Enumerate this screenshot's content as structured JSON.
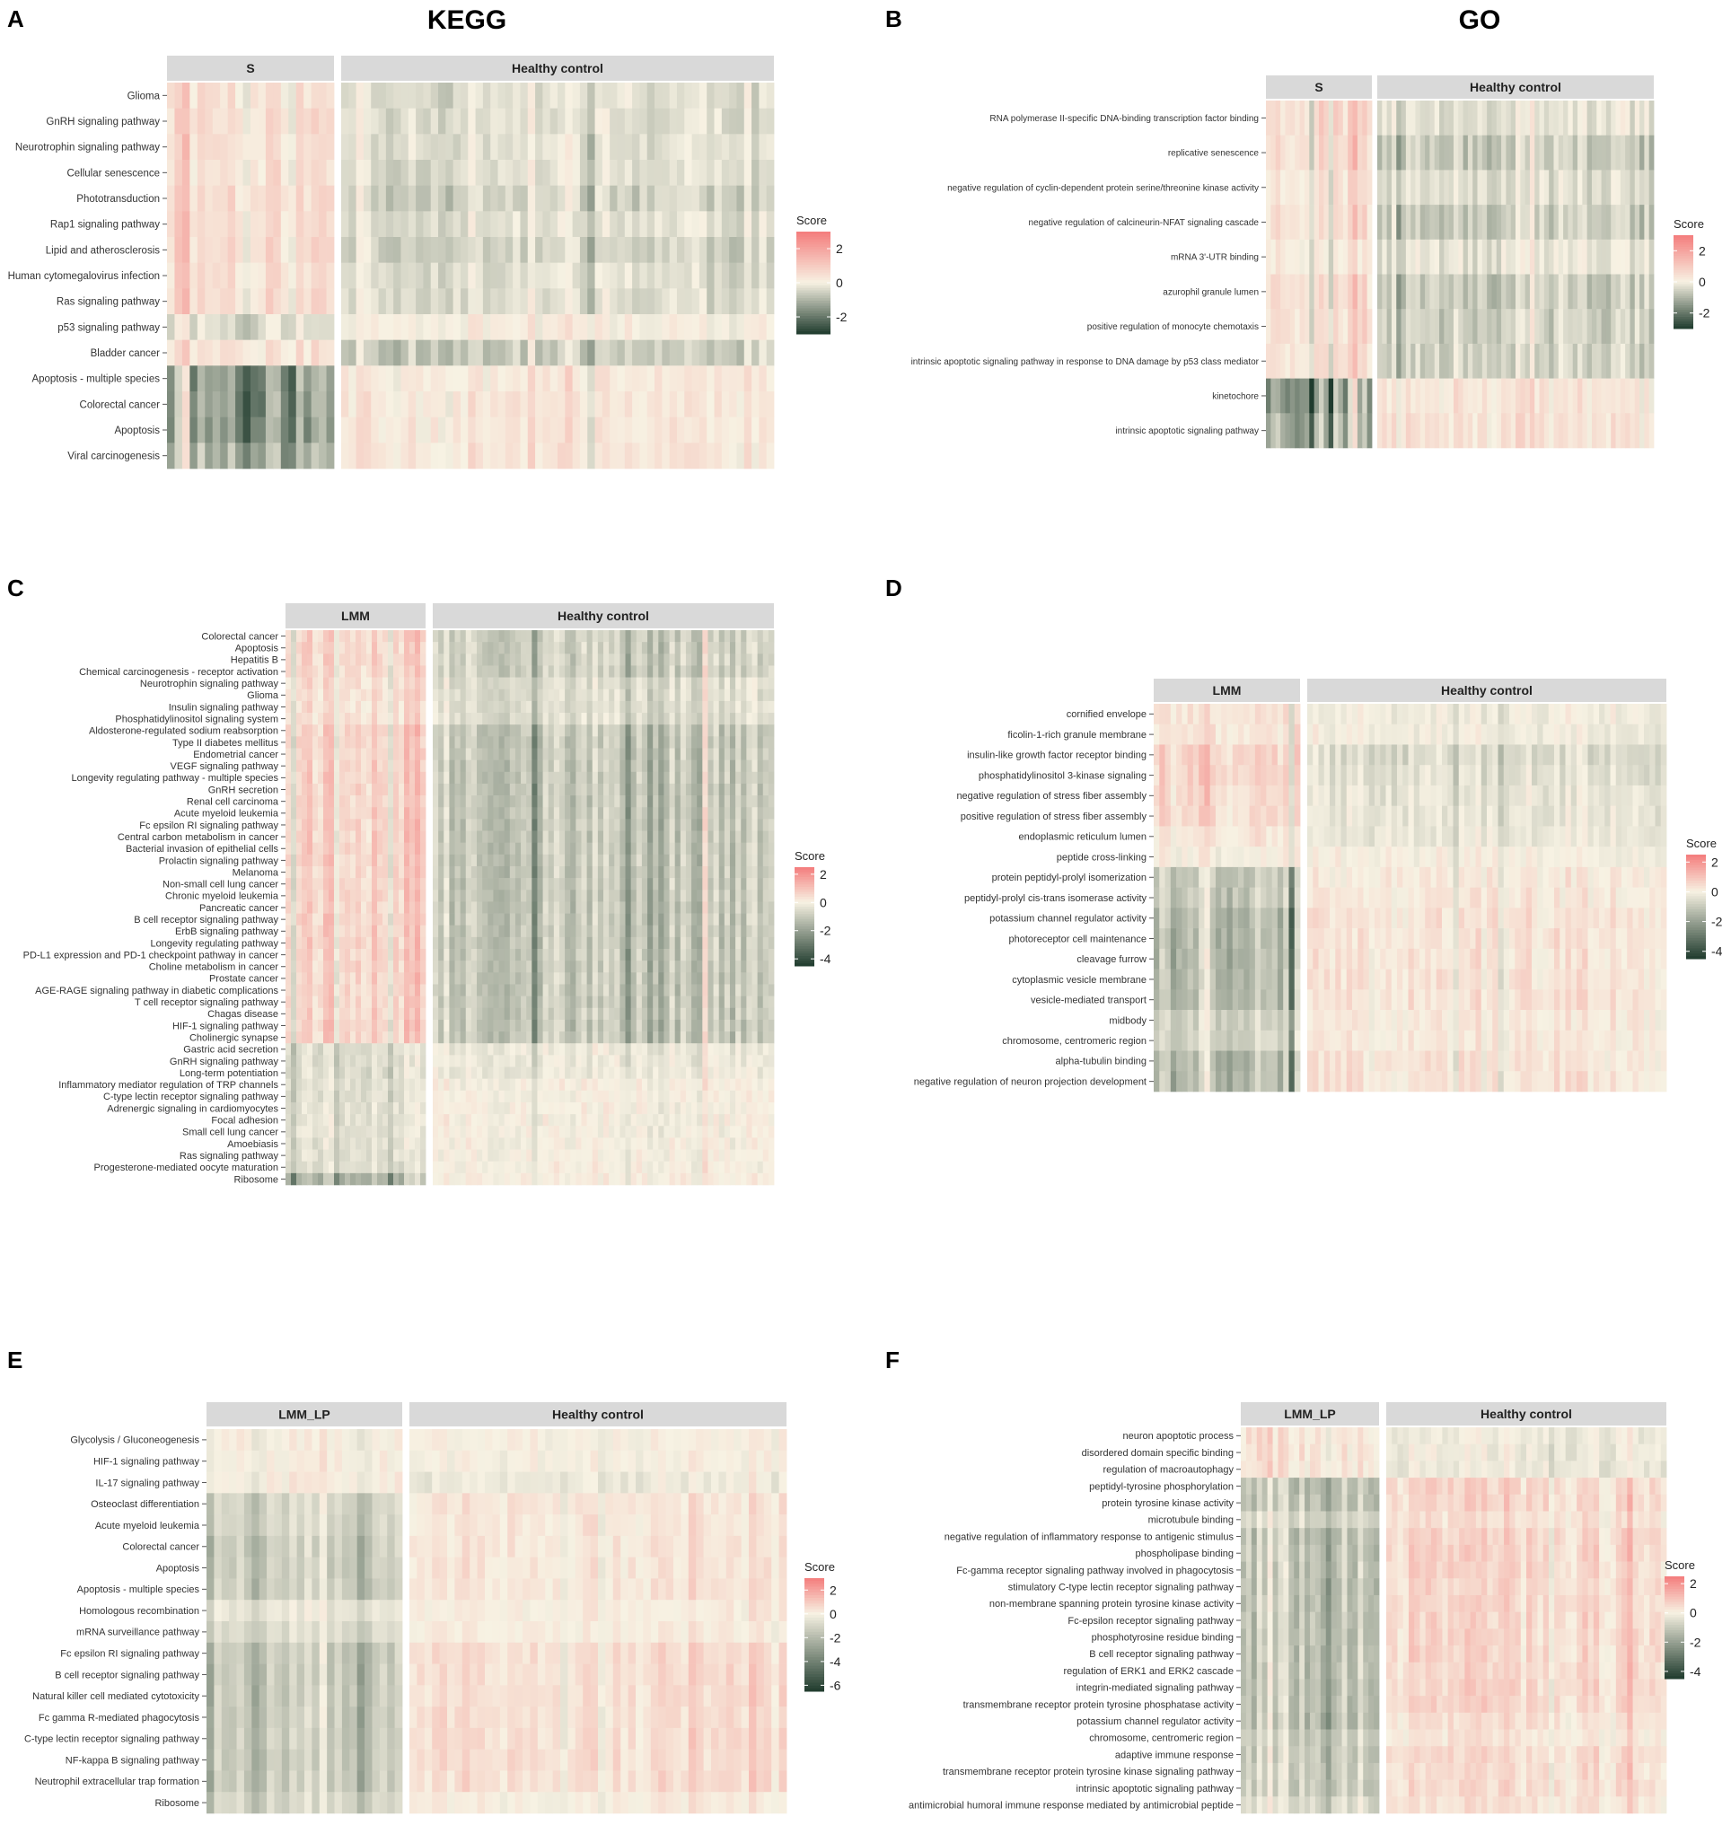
{
  "figure": {
    "col_titles": [
      "KEGG",
      "GO"
    ]
  },
  "colors": {
    "low": "#1f3b2d",
    "mid": "#f7f2e3",
    "high": "#f47c7c",
    "strip_bg": "#d9d9d9"
  },
  "chart_data": [
    {
      "type": "heatmap",
      "panel_label": "A",
      "legend_title": "Score",
      "legend_ticks": [
        2,
        0,
        -2
      ],
      "scale": [
        -3,
        3
      ],
      "groups": [
        {
          "name": "S",
          "n_cols": 22
        },
        {
          "name": "Healthy control",
          "n_cols": 58
        }
      ],
      "rows": [
        "Glioma",
        "GnRH signaling pathway",
        "Neurotrophin signaling pathway",
        "Cellular senescence",
        "Phototransduction",
        "Rap1 signaling pathway",
        "Lipid and atherosclerosis",
        "Human cytomegalovirus infection",
        "Ras signaling pathway",
        "p53 signaling pathway",
        "Bladder cancer",
        "Apoptosis - multiple species",
        "Colorectal cancer",
        "Apoptosis",
        "Viral carcinogenesis"
      ],
      "row_trend": [
        [
          0.5,
          -0.3
        ],
        [
          0.5,
          -0.3
        ],
        [
          0.5,
          -0.3
        ],
        [
          0.5,
          -0.3
        ],
        [
          0.6,
          -0.5
        ],
        [
          0.5,
          -0.3
        ],
        [
          0.6,
          -0.5
        ],
        [
          0.5,
          -0.3
        ],
        [
          0.5,
          -0.3
        ],
        [
          -0.3,
          0.1
        ],
        [
          0.4,
          -0.6
        ],
        [
          -1.3,
          0.3
        ],
        [
          -1.3,
          0.3
        ],
        [
          -1.3,
          0.3
        ],
        [
          -1.0,
          0.3
        ]
      ],
      "seed": 11
    },
    {
      "type": "heatmap",
      "panel_label": "B",
      "legend_title": "Score",
      "legend_ticks": [
        2,
        0,
        -2
      ],
      "scale": [
        -3,
        3
      ],
      "groups": [
        {
          "name": "S",
          "n_cols": 22
        },
        {
          "name": "Healthy control",
          "n_cols": 58
        }
      ],
      "rows": [
        "RNA polymerase II-specific DNA-binding transcription factor binding",
        "replicative senescence",
        "negative regulation of cyclin-dependent protein serine/threonine kinase activity",
        "negative regulation of calcineurin-NFAT signaling cascade",
        "mRNA 3'-UTR binding",
        "azurophil granule lumen",
        "positive regulation of monocyte chemotaxis",
        "intrinsic apoptotic signaling pathway in response to DNA damage by p53 class mediator",
        "kinetochore",
        "intrinsic apoptotic signaling pathway"
      ],
      "row_trend": [
        [
          0.6,
          -0.2
        ],
        [
          0.6,
          -0.6
        ],
        [
          0.4,
          -0.3
        ],
        [
          0.5,
          -0.6
        ],
        [
          0.2,
          -0.2
        ],
        [
          0.5,
          -0.6
        ],
        [
          0.5,
          -0.5
        ],
        [
          0.5,
          -0.5
        ],
        [
          -1.3,
          0.3
        ],
        [
          -1.0,
          0.4
        ]
      ],
      "seed": 23
    },
    {
      "type": "heatmap",
      "panel_label": "C",
      "legend_title": "Score",
      "legend_ticks": [
        2,
        0,
        -2,
        -4
      ],
      "scale": [
        -4.5,
        2.5
      ],
      "groups": [
        {
          "name": "LMM",
          "n_cols": 26
        },
        {
          "name": "Healthy control",
          "n_cols": 62
        }
      ],
      "rows": [
        "Colorectal cancer",
        "Apoptosis",
        "Hepatitis B",
        "Chemical carcinogenesis - receptor activation",
        "Neurotrophin signaling pathway",
        "Glioma",
        "Insulin signaling pathway",
        "Phosphatidylinositol signaling system",
        "Aldosterone-regulated sodium reabsorption",
        "Type II diabetes mellitus",
        "Endometrial cancer",
        "VEGF signaling pathway",
        "Longevity regulating pathway - multiple species",
        "GnRH secretion",
        "Renal cell carcinoma",
        "Acute myeloid leukemia",
        "Fc epsilon RI signaling pathway",
        "Central carbon metabolism in cancer",
        "Bacterial invasion of epithelial cells",
        "Prolactin signaling pathway",
        "Melanoma",
        "Non-small cell lung cancer",
        "Chronic myeloid leukemia",
        "Pancreatic cancer",
        "B cell receptor signaling pathway",
        "ErbB signaling pathway",
        "Longevity regulating pathway",
        "PD-L1 expression and PD-1 checkpoint pathway in cancer",
        "Choline metabolism in cancer",
        "Prostate cancer",
        "AGE-RAGE signaling pathway in diabetic complications",
        "T cell receptor signaling pathway",
        "Chagas disease",
        "HIF-1 signaling pathway",
        "Cholinergic synapse",
        "Gastric acid secretion",
        "GnRH signaling pathway",
        "Long-term potentiation",
        "Inflammatory mediator regulation of TRP channels",
        "C-type lectin receptor signaling pathway",
        "Adrenergic signaling in cardiomyocytes",
        "Focal adhesion",
        "Small cell lung cancer",
        "Amoebiasis",
        "Ras signaling pathway",
        "Progesterone-mediated oocyte maturation",
        "Ribosome"
      ],
      "row_trend": [
        [
          0.7,
          -0.8
        ],
        [
          0.7,
          -0.8
        ],
        [
          0.7,
          -0.8
        ],
        [
          0.7,
          -0.8
        ],
        [
          0.5,
          -0.5
        ],
        [
          0.5,
          -0.5
        ],
        [
          0.5,
          -0.5
        ],
        [
          0.5,
          -0.5
        ],
        [
          0.8,
          -1.0
        ],
        [
          0.8,
          -1.0
        ],
        [
          0.8,
          -1.0
        ],
        [
          0.8,
          -1.0
        ],
        [
          0.8,
          -1.0
        ],
        [
          0.8,
          -1.0
        ],
        [
          0.8,
          -1.0
        ],
        [
          0.8,
          -1.0
        ],
        [
          0.8,
          -1.0
        ],
        [
          0.8,
          -1.0
        ],
        [
          0.8,
          -1.0
        ],
        [
          0.8,
          -1.0
        ],
        [
          0.8,
          -1.0
        ],
        [
          0.8,
          -1.0
        ],
        [
          0.8,
          -1.0
        ],
        [
          0.8,
          -1.0
        ],
        [
          0.8,
          -1.0
        ],
        [
          0.8,
          -1.0
        ],
        [
          0.8,
          -1.0
        ],
        [
          0.8,
          -1.0
        ],
        [
          0.8,
          -1.0
        ],
        [
          0.8,
          -1.0
        ],
        [
          0.8,
          -1.0
        ],
        [
          0.8,
          -1.0
        ],
        [
          0.8,
          -1.0
        ],
        [
          0.8,
          -1.0
        ],
        [
          0.8,
          -1.0
        ],
        [
          -0.4,
          -0.2
        ],
        [
          -0.4,
          -0.2
        ],
        [
          -0.4,
          -0.2
        ],
        [
          -0.3,
          0.0
        ],
        [
          -0.3,
          0.0
        ],
        [
          -0.3,
          0.0
        ],
        [
          -0.3,
          0.0
        ],
        [
          -0.3,
          0.0
        ],
        [
          -0.3,
          0.0
        ],
        [
          -0.3,
          0.0
        ],
        [
          -0.4,
          0.0
        ],
        [
          -1.2,
          0.1
        ]
      ],
      "seed": 37
    },
    {
      "type": "heatmap",
      "panel_label": "D",
      "legend_title": "Score",
      "legend_ticks": [
        2,
        0,
        -2,
        -4
      ],
      "scale": [
        -4.5,
        2.5
      ],
      "groups": [
        {
          "name": "LMM",
          "n_cols": 26
        },
        {
          "name": "Healthy control",
          "n_cols": 64
        }
      ],
      "rows": [
        "cornified envelope",
        "ficolin-1-rich granule membrane",
        "insulin-like growth factor receptor binding",
        "phosphatidylinositol 3-kinase signaling",
        "negative regulation of stress fiber assembly",
        "positive regulation of stress fiber assembly",
        "endoplasmic reticulum lumen",
        "peptide cross-linking",
        "protein peptidyl-prolyl isomerization",
        "peptidyl-prolyl cis-trans isomerase activity",
        "potassium channel regulator activity",
        "photoreceptor cell maintenance",
        "cleavage furrow",
        "cytoplasmic vesicle membrane",
        "vesicle-mediated transport",
        "midbody",
        "chromosome, centromeric region",
        "alpha-tubulin binding",
        "negative regulation of neuron projection development"
      ],
      "row_trend": [
        [
          0.3,
          -0.1
        ],
        [
          0.3,
          -0.1
        ],
        [
          0.6,
          -0.5
        ],
        [
          0.6,
          -0.4
        ],
        [
          0.5,
          -0.3
        ],
        [
          0.5,
          -0.3
        ],
        [
          0.2,
          -0.2
        ],
        [
          0.0,
          0.0
        ],
        [
          -1.0,
          0.2
        ],
        [
          -1.0,
          0.2
        ],
        [
          -1.3,
          0.3
        ],
        [
          -1.3,
          0.3
        ],
        [
          -1.3,
          0.3
        ],
        [
          -1.3,
          0.3
        ],
        [
          -1.3,
          0.3
        ],
        [
          -0.8,
          0.2
        ],
        [
          -0.8,
          0.2
        ],
        [
          -1.3,
          0.3
        ],
        [
          -1.3,
          0.3
        ]
      ],
      "seed": 41
    },
    {
      "type": "heatmap",
      "panel_label": "E",
      "legend_title": "Score",
      "legend_ticks": [
        2,
        0,
        -2,
        -4,
        -6
      ],
      "scale": [
        -6.5,
        3
      ],
      "groups": [
        {
          "name": "LMM_LP",
          "n_cols": 26
        },
        {
          "name": "Healthy control",
          "n_cols": 50
        }
      ],
      "rows": [
        "Glycolysis / Gluconeogenesis",
        "HIF-1 signaling pathway",
        "IL-17 signaling pathway",
        "Osteoclast differentiation",
        "Acute myeloid leukemia",
        "Colorectal cancer",
        "Apoptosis",
        "Apoptosis - multiple species",
        "Homologous recombination",
        "mRNA surveillance pathway",
        "Fc epsilon RI signaling pathway",
        "B cell receptor signaling pathway",
        "Natural killer cell mediated cytotoxicity",
        "Fc gamma R-mediated phagocytosis",
        "C-type lectin receptor signaling pathway",
        "NF-kappa B signaling pathway",
        "Neutrophil extracellular trap formation",
        "Ribosome"
      ],
      "row_trend": [
        [
          0.1,
          0.0
        ],
        [
          0.1,
          0.0
        ],
        [
          0.2,
          -0.3
        ],
        [
          -0.8,
          0.3
        ],
        [
          -0.8,
          0.3
        ],
        [
          -1.0,
          0.3
        ],
        [
          -1.0,
          0.3
        ],
        [
          -1.0,
          0.3
        ],
        [
          -0.3,
          0.1
        ],
        [
          -0.6,
          0.1
        ],
        [
          -1.1,
          0.5
        ],
        [
          -1.1,
          0.5
        ],
        [
          -1.1,
          0.5
        ],
        [
          -1.1,
          0.5
        ],
        [
          -1.1,
          0.5
        ],
        [
          -1.1,
          0.5
        ],
        [
          -1.1,
          0.5
        ],
        [
          -0.8,
          0.1
        ]
      ],
      "seed": 53
    },
    {
      "type": "heatmap",
      "panel_label": "F",
      "legend_title": "Score",
      "legend_ticks": [
        2,
        0,
        -2,
        -4
      ],
      "scale": [
        -4.5,
        2.5
      ],
      "groups": [
        {
          "name": "LMM_LP",
          "n_cols": 26
        },
        {
          "name": "Healthy control",
          "n_cols": 50
        }
      ],
      "rows": [
        "neuron apoptotic process",
        "disordered domain specific binding",
        "regulation of macroautophagy",
        "peptidyl-tyrosine phosphorylation",
        "protein tyrosine kinase activity",
        "microtubule binding",
        "negative regulation of inflammatory response to antigenic stimulus",
        "phospholipase binding",
        "Fc-gamma receptor signaling pathway involved in phagocytosis",
        "stimulatory C-type lectin receptor signaling pathway",
        "non-membrane spanning protein tyrosine kinase activity",
        "Fc-epsilon receptor signaling pathway",
        "phosphotyrosine residue binding",
        "B cell receptor signaling pathway",
        "regulation of ERK1 and ERK2 cascade",
        "integrin-mediated signaling pathway",
        "transmembrane receptor protein tyrosine phosphatase activity",
        "potassium channel regulator activity",
        "chromosome, centromeric region",
        "adaptive immune response",
        "transmembrane receptor protein tyrosine kinase signaling pathway",
        "intrinsic apoptotic signaling pathway",
        "antimicrobial humoral immune response mediated by antimicrobial peptide"
      ],
      "row_trend": [
        [
          0.3,
          -0.2
        ],
        [
          0.3,
          -0.2
        ],
        [
          0.3,
          -0.2
        ],
        [
          -1.0,
          0.5
        ],
        [
          -1.0,
          0.5
        ],
        [
          -0.6,
          0.3
        ],
        [
          -1.0,
          0.5
        ],
        [
          -1.0,
          0.5
        ],
        [
          -1.0,
          0.5
        ],
        [
          -1.0,
          0.5
        ],
        [
          -1.0,
          0.5
        ],
        [
          -1.0,
          0.5
        ],
        [
          -1.0,
          0.5
        ],
        [
          -1.0,
          0.5
        ],
        [
          -1.0,
          0.5
        ],
        [
          -1.0,
          0.5
        ],
        [
          -1.0,
          0.5
        ],
        [
          -1.1,
          0.3
        ],
        [
          -0.8,
          0.2
        ],
        [
          -0.8,
          0.4
        ],
        [
          -0.8,
          0.4
        ],
        [
          -0.8,
          0.4
        ],
        [
          -0.5,
          0.3
        ]
      ],
      "seed": 67
    }
  ]
}
